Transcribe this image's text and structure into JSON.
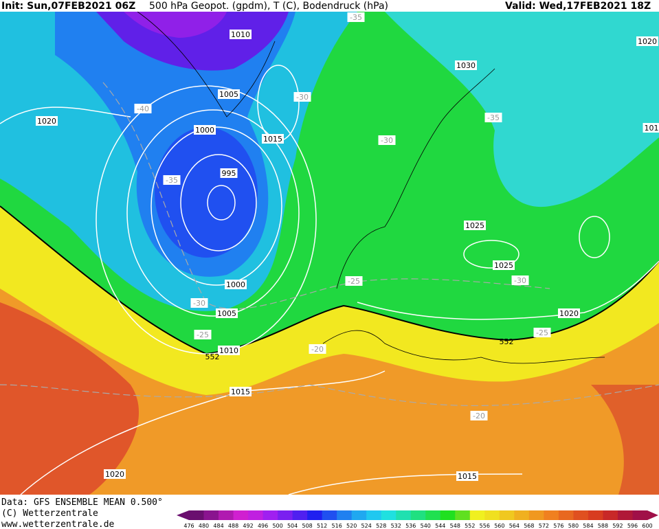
{
  "header": {
    "init": "Init: Sun,07FEB2021 06Z",
    "title": "500 hPa Geopot. (gpdm), T (C), Bodendruck (hPa)",
    "valid": "Valid: Wed,17FEB2021 18Z"
  },
  "footer": {
    "data": "Data: GFS ENSEMBLE MEAN 0.500°",
    "copyright": "(C) Wetterzentrale",
    "url": "www.wetterzentrale.de"
  },
  "map": {
    "isobar_labels": [
      1010,
      1030,
      1020,
      1005,
      1020,
      1000,
      1015,
      995,
      1025,
      1025,
      1000,
      1005,
      1010,
      1020,
      1015,
      1020,
      1015,
      101
    ],
    "isotherm_labels": [
      -35,
      -30,
      -40,
      -35,
      -30,
      -35,
      -25,
      -30,
      -30,
      -25,
      -25,
      -20,
      -20
    ],
    "height_labels": [
      552,
      552
    ]
  },
  "colorbar": {
    "labels": [
      476,
      480,
      484,
      488,
      492,
      496,
      500,
      504,
      508,
      512,
      516,
      520,
      524,
      528,
      532,
      536,
      540,
      544,
      548,
      552,
      556,
      560,
      564,
      568,
      572,
      576,
      580,
      584,
      588,
      592,
      596,
      600
    ],
    "colors": [
      "#6a0f6f",
      "#8a148f",
      "#b01ab0",
      "#d020d0",
      "#c020e0",
      "#a020f0",
      "#7a20f0",
      "#5020f0",
      "#2020f0",
      "#2050f0",
      "#2080f0",
      "#20a8f0",
      "#20c8f0",
      "#20e0e0",
      "#20e0b0",
      "#20e080",
      "#20e050",
      "#20e020",
      "#60e020",
      "#f0f020",
      "#f0e020",
      "#f0c820",
      "#f0b020",
      "#f09820",
      "#f08020",
      "#e86820",
      "#e05020",
      "#d83c20",
      "#c82828",
      "#b01838",
      "#a01048"
    ]
  }
}
